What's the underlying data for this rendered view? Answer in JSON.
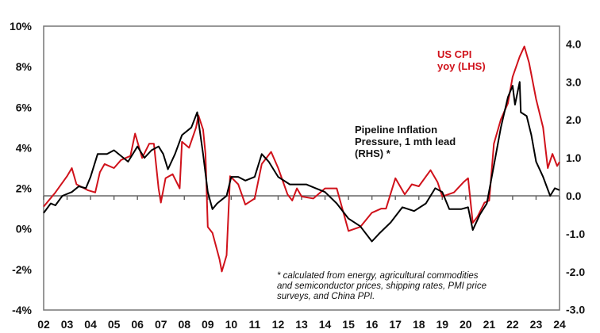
{
  "chart_data": {
    "type": "line",
    "title": "",
    "colors": {
      "cpi": "#d0121b",
      "pipeline": "#000000"
    },
    "x_ticks": [
      "02",
      "03",
      "04",
      "05",
      "06",
      "07",
      "08",
      "09",
      "10",
      "11",
      "12",
      "13",
      "14",
      "15",
      "16",
      "17",
      "18",
      "19",
      "20",
      "21",
      "22",
      "23",
      "24"
    ],
    "xlim": [
      2002,
      2024
    ],
    "left_axis": {
      "ylim": [
        -4,
        10
      ],
      "ticks": [
        "-4%",
        "-2%",
        "0%",
        "2%",
        "4%",
        "6%",
        "8%",
        "10%"
      ],
      "tick_values": [
        -4,
        -2,
        0,
        2,
        4,
        6,
        8,
        10
      ]
    },
    "right_axis": {
      "ylim": [
        -3,
        4
      ],
      "ticks": [
        "-3.0",
        "-2.0",
        "-1.0",
        "0.0",
        "1.0",
        "2.0",
        "3.0",
        "4.0"
      ],
      "tick_values": [
        -3,
        -2,
        -1,
        0,
        1,
        2,
        3,
        4
      ]
    },
    "annotations": {
      "cpi_label": [
        "US CPI",
        "yoy (LHS)"
      ],
      "pipeline_label": [
        "Pipeline Inflation",
        "Pressure, 1 mth lead",
        "(RHS) *"
      ],
      "footnote": [
        "* calculated from energy, agricultural commodities",
        "and semiconductor prices, shipping rates, PMI price",
        "surveys, and China PPI."
      ]
    },
    "series": [
      {
        "name": "US CPI yoy (LHS)",
        "axis": "left",
        "x": [
          2002,
          2002.5,
          2003,
          2003.2,
          2003.4,
          2003.9,
          2004.2,
          2004.4,
          2004.6,
          2005,
          2005.3,
          2005.7,
          2005.9,
          2006.2,
          2006.5,
          2006.7,
          2006.9,
          2007,
          2007.2,
          2007.5,
          2007.8,
          2007.9,
          2008.2,
          2008.5,
          2008.6,
          2008.8,
          2008.9,
          2009,
          2009.2,
          2009.5,
          2009.6,
          2009.8,
          2009.95,
          2010.3,
          2010.6,
          2011,
          2011.3,
          2011.7,
          2012,
          2012.4,
          2012.6,
          2012.8,
          2013,
          2013.5,
          2014,
          2014.5,
          2015,
          2015.5,
          2016,
          2016.4,
          2016.6,
          2017,
          2017.4,
          2017.7,
          2018,
          2018.5,
          2018.8,
          2019,
          2019.5,
          2019.9,
          2020.1,
          2020.3,
          2020.5,
          2020.8,
          2021,
          2021.2,
          2021.5,
          2021.8,
          2022,
          2022.3,
          2022.5,
          2022.7,
          2023,
          2023.3,
          2023.5,
          2023.7,
          2023.9,
          2024
        ],
        "y": [
          1.1,
          1.8,
          2.6,
          3.0,
          2.2,
          1.9,
          1.8,
          2.8,
          3.2,
          3.0,
          3.4,
          3.6,
          4.7,
          3.5,
          4.2,
          4.2,
          2.0,
          1.3,
          2.5,
          2.7,
          2.0,
          4.3,
          4.0,
          5.0,
          5.6,
          4.9,
          3.7,
          0.1,
          -0.2,
          -1.5,
          -2.1,
          -1.3,
          2.6,
          2.2,
          1.2,
          1.5,
          3.2,
          3.8,
          3.0,
          1.7,
          1.4,
          2.0,
          1.6,
          1.5,
          2.0,
          2.0,
          -0.1,
          0.1,
          0.8,
          1.0,
          1.0,
          2.5,
          1.7,
          2.2,
          2.1,
          2.9,
          2.3,
          1.6,
          1.8,
          2.3,
          2.5,
          0.3,
          0.6,
          1.3,
          1.4,
          4.2,
          5.4,
          6.2,
          7.5,
          8.5,
          9.0,
          8.2,
          6.4,
          5.0,
          3.0,
          3.7,
          3.1,
          3.3
        ]
      },
      {
        "name": "Pipeline Inflation Pressure, 1 mth lead (RHS)",
        "axis": "right",
        "x": [
          2002,
          2002.3,
          2002.5,
          2002.8,
          2003.2,
          2003.5,
          2003.8,
          2004,
          2004.3,
          2004.7,
          2005,
          2005.4,
          2005.6,
          2006,
          2006.3,
          2006.6,
          2006.9,
          2007.1,
          2007.3,
          2007.6,
          2007.9,
          2008.3,
          2008.55,
          2008.8,
          2009,
          2009.2,
          2009.4,
          2009.6,
          2009.8,
          2010,
          2010.3,
          2010.6,
          2011,
          2011.3,
          2011.6,
          2012,
          2012.5,
          2012.9,
          2013.2,
          2013.6,
          2014,
          2014.5,
          2015,
          2015.5,
          2016,
          2016.3,
          2016.8,
          2017.3,
          2017.8,
          2018.3,
          2018.7,
          2019,
          2019.3,
          2019.8,
          2020.1,
          2020.3,
          2020.6,
          2020.9,
          2021.2,
          2021.5,
          2021.8,
          2022,
          2022.1,
          2022.3,
          2022.35,
          2022.6,
          2022.8,
          2023,
          2023.3,
          2023.6,
          2023.8,
          2024
        ],
        "y": [
          -0.45,
          -0.2,
          -0.25,
          0.0,
          0.1,
          0.25,
          0.2,
          0.5,
          1.1,
          1.1,
          1.2,
          1.0,
          0.9,
          1.3,
          1.0,
          1.2,
          1.3,
          1.1,
          0.7,
          1.1,
          1.6,
          1.8,
          2.2,
          1.1,
          0.1,
          -0.35,
          -0.2,
          -0.1,
          0.0,
          0.5,
          0.5,
          0.4,
          0.5,
          1.1,
          0.9,
          0.5,
          0.3,
          0.3,
          0.3,
          0.2,
          0.1,
          -0.2,
          -0.6,
          -0.8,
          -1.2,
          -1.0,
          -0.7,
          -0.3,
          -0.4,
          -0.2,
          0.2,
          0.1,
          -0.35,
          -0.35,
          -0.3,
          -0.9,
          -0.5,
          -0.2,
          0.8,
          1.8,
          2.6,
          2.9,
          2.4,
          3.0,
          2.2,
          2.1,
          1.6,
          0.9,
          0.5,
          0.0,
          0.2,
          0.15
        ]
      }
    ]
  }
}
